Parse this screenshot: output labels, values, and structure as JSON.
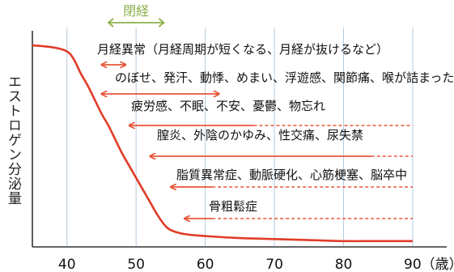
{
  "chart_data": {
    "type": "line",
    "title": "",
    "xlabel": "",
    "ylabel": "エストロゲン分泌量",
    "x_ticks": [
      "40",
      "50",
      "60",
      "70",
      "80",
      "90（歳）"
    ],
    "xlim": [
      35,
      90
    ],
    "grid": true,
    "series": [
      {
        "x": [
          35,
          38,
          40,
          41,
          42,
          43,
          44,
          45,
          46,
          47,
          48,
          49,
          50,
          51,
          52,
          53,
          54,
          55,
          57,
          60,
          65,
          70,
          75,
          80,
          85,
          90
        ],
        "y": [
          100,
          99,
          97,
          93,
          86,
          80,
          73,
          66,
          60,
          53,
          46,
          40,
          34,
          28,
          22,
          16,
          11,
          8,
          6,
          5,
          4,
          3.5,
          3,
          2.5,
          2.5,
          2.5
        ]
      }
    ],
    "menopause_bracket": {
      "label": "閉経",
      "start": 46,
      "end": 54
    },
    "annotations": [
      {
        "text": "月経異常（月経周期が短くなる、月経が抜けるなど）",
        "arrow_start": 45,
        "arrow_end": 48.5,
        "solid_end": 48.5,
        "arrowhead": "both"
      },
      {
        "text": "のぼせ、発汗、動悸、めまい、浮遊感、関節痛、喉が詰まった感じ",
        "arrow_start": 45,
        "arrow_end": 62,
        "solid_end": 62,
        "arrowhead": "both"
      },
      {
        "text": "疲労感、不眠、不安、憂鬱、物忘れ",
        "arrow_start": 49,
        "arrow_end": 90,
        "solid_end": 67,
        "arrowhead": "left"
      },
      {
        "text": "膣炎、外陰のかゆみ、性交痛、尿失禁",
        "arrow_start": 52,
        "arrow_end": 90,
        "solid_end": 84,
        "arrowhead": "left"
      },
      {
        "text": "脂質異常症、動脈硬化、心筋梗塞、脳卒中",
        "arrow_start": 55,
        "arrow_end": 90,
        "solid_end": 61,
        "arrowhead": "left"
      },
      {
        "text": "骨粗鬆症",
        "arrow_start": 57,
        "arrow_end": 90,
        "solid_end": 61,
        "arrowhead": "left"
      }
    ],
    "colors": {
      "curve": "#e03c28",
      "arrow": "#e8563a",
      "menopause": "#8cb04a",
      "grid": "#b3cbe0",
      "axis": "#333333",
      "text": "#111111"
    }
  }
}
